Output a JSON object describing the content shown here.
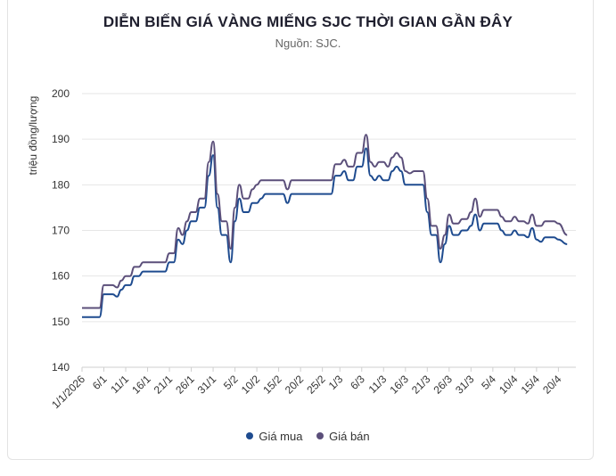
{
  "chart_data": {
    "type": "line",
    "title": "DIỄN BIẾN GIÁ VÀNG MIẾNG SJC THỜI GIAN GẦN ĐÂY",
    "subtitle": "Nguồn: SJC.",
    "ylabel": "triệu đồng/lượng",
    "ylim": [
      140,
      200
    ],
    "yticks": [
      140,
      150,
      160,
      170,
      180,
      190,
      200
    ],
    "xlim": [
      "2026-01-01",
      "2026-04-24"
    ],
    "xtick_labels": [
      "1/1/2026",
      "6/1",
      "11/1",
      "16/1",
      "21/1",
      "26/1",
      "31/1",
      "5/2",
      "10/2",
      "15/2",
      "20/2",
      "25/2",
      "1/3",
      "6/3",
      "11/3",
      "16/3",
      "21/3",
      "26/3",
      "31/3",
      "5/4",
      "10/4",
      "15/4",
      "20/4"
    ],
    "xtick_dates": [
      "2026-01-01",
      "2026-01-06",
      "2026-01-11",
      "2026-01-16",
      "2026-01-21",
      "2026-01-26",
      "2026-01-31",
      "2026-02-05",
      "2026-02-10",
      "2026-02-15",
      "2026-02-20",
      "2026-02-25",
      "2026-03-01",
      "2026-03-06",
      "2026-03-11",
      "2026-03-16",
      "2026-03-21",
      "2026-03-26",
      "2026-03-31",
      "2026-04-05",
      "2026-04-10",
      "2026-04-15",
      "2026-04-20"
    ],
    "grid": "horizontal",
    "legend_position": "bottom",
    "series": [
      {
        "name": "Giá mua",
        "color": "#1e4b8f",
        "points": [
          [
            "2026-01-01",
            151
          ],
          [
            "2026-01-05",
            151
          ],
          [
            "2026-01-06",
            156
          ],
          [
            "2026-01-08",
            156
          ],
          [
            "2026-01-09",
            155.5
          ],
          [
            "2026-01-10",
            157
          ],
          [
            "2026-01-11",
            158
          ],
          [
            "2026-01-12",
            158
          ],
          [
            "2026-01-13",
            160
          ],
          [
            "2026-01-14",
            160
          ],
          [
            "2026-01-15",
            161
          ],
          [
            "2026-01-20",
            161
          ],
          [
            "2026-01-21",
            163
          ],
          [
            "2026-01-22",
            163
          ],
          [
            "2026-01-23",
            168
          ],
          [
            "2026-01-24",
            167
          ],
          [
            "2026-01-25",
            170
          ],
          [
            "2026-01-26",
            172
          ],
          [
            "2026-01-27",
            172
          ],
          [
            "2026-01-28",
            175
          ],
          [
            "2026-01-29",
            175
          ],
          [
            "2026-01-30",
            182
          ],
          [
            "2026-01-31",
            186.5
          ],
          [
            "2026-02-01",
            175
          ],
          [
            "2026-02-02",
            169
          ],
          [
            "2026-02-03",
            169
          ],
          [
            "2026-02-04",
            163
          ],
          [
            "2026-02-05",
            172
          ],
          [
            "2026-02-06",
            177
          ],
          [
            "2026-02-07",
            174
          ],
          [
            "2026-02-08",
            174
          ],
          [
            "2026-02-09",
            176
          ],
          [
            "2026-02-10",
            176
          ],
          [
            "2026-02-11",
            177
          ],
          [
            "2026-02-12",
            178
          ],
          [
            "2026-02-16",
            178
          ],
          [
            "2026-02-17",
            176
          ],
          [
            "2026-02-18",
            178
          ],
          [
            "2026-02-27",
            178
          ],
          [
            "2026-02-28",
            182
          ],
          [
            "2026-03-01",
            182
          ],
          [
            "2026-03-02",
            183
          ],
          [
            "2026-03-03",
            181
          ],
          [
            "2026-03-04",
            181
          ],
          [
            "2026-03-05",
            184
          ],
          [
            "2026-03-06",
            184
          ],
          [
            "2026-03-07",
            188
          ],
          [
            "2026-03-08",
            182
          ],
          [
            "2026-03-09",
            181
          ],
          [
            "2026-03-10",
            182
          ],
          [
            "2026-03-11",
            181
          ],
          [
            "2026-03-12",
            181
          ],
          [
            "2026-03-13",
            183
          ],
          [
            "2026-03-14",
            184
          ],
          [
            "2026-03-15",
            183
          ],
          [
            "2026-03-16",
            180
          ],
          [
            "2026-03-20",
            180
          ],
          [
            "2026-03-21",
            174
          ],
          [
            "2026-03-22",
            169
          ],
          [
            "2026-03-23",
            169
          ],
          [
            "2026-03-24",
            163
          ],
          [
            "2026-03-25",
            167
          ],
          [
            "2026-03-26",
            171
          ],
          [
            "2026-03-27",
            169
          ],
          [
            "2026-03-28",
            169
          ],
          [
            "2026-03-29",
            170
          ],
          [
            "2026-03-30",
            170
          ],
          [
            "2026-03-31",
            171
          ],
          [
            "2026-04-01",
            173.5
          ],
          [
            "2026-04-02",
            170
          ],
          [
            "2026-04-03",
            171.5
          ],
          [
            "2026-04-06",
            171.5
          ],
          [
            "2026-04-07",
            170
          ],
          [
            "2026-04-08",
            169
          ],
          [
            "2026-04-09",
            169
          ],
          [
            "2026-04-10",
            170
          ],
          [
            "2026-04-11",
            169
          ],
          [
            "2026-04-12",
            169
          ],
          [
            "2026-04-13",
            168.5
          ],
          [
            "2026-04-14",
            170.5
          ],
          [
            "2026-04-15",
            168
          ],
          [
            "2026-04-16",
            167.5
          ],
          [
            "2026-04-17",
            168.5
          ],
          [
            "2026-04-19",
            168.5
          ],
          [
            "2026-04-20",
            168
          ],
          [
            "2026-04-22",
            167
          ]
        ]
      },
      {
        "name": "Giá bán",
        "color": "#5b4f7a",
        "points": [
          [
            "2026-01-01",
            153
          ],
          [
            "2026-01-05",
            153
          ],
          [
            "2026-01-06",
            158
          ],
          [
            "2026-01-08",
            158
          ],
          [
            "2026-01-09",
            157.5
          ],
          [
            "2026-01-10",
            159
          ],
          [
            "2026-01-11",
            160
          ],
          [
            "2026-01-12",
            160
          ],
          [
            "2026-01-13",
            162
          ],
          [
            "2026-01-14",
            162
          ],
          [
            "2026-01-15",
            163
          ],
          [
            "2026-01-20",
            163
          ],
          [
            "2026-01-21",
            165
          ],
          [
            "2026-01-22",
            165
          ],
          [
            "2026-01-23",
            170.5
          ],
          [
            "2026-01-24",
            169
          ],
          [
            "2026-01-25",
            172
          ],
          [
            "2026-01-26",
            174
          ],
          [
            "2026-01-27",
            174
          ],
          [
            "2026-01-28",
            177
          ],
          [
            "2026-01-29",
            177
          ],
          [
            "2026-01-30",
            185
          ],
          [
            "2026-01-31",
            189.5
          ],
          [
            "2026-02-01",
            178
          ],
          [
            "2026-02-02",
            172
          ],
          [
            "2026-02-03",
            172
          ],
          [
            "2026-02-04",
            166
          ],
          [
            "2026-02-05",
            175
          ],
          [
            "2026-02-06",
            180
          ],
          [
            "2026-02-07",
            177
          ],
          [
            "2026-02-08",
            177
          ],
          [
            "2026-02-09",
            179
          ],
          [
            "2026-02-10",
            180
          ],
          [
            "2026-02-11",
            181
          ],
          [
            "2026-02-12",
            181
          ],
          [
            "2026-02-16",
            181
          ],
          [
            "2026-02-17",
            179
          ],
          [
            "2026-02-18",
            181
          ],
          [
            "2026-02-27",
            181
          ],
          [
            "2026-02-28",
            184.5
          ],
          [
            "2026-03-01",
            184.5
          ],
          [
            "2026-03-02",
            185.5
          ],
          [
            "2026-03-03",
            184
          ],
          [
            "2026-03-04",
            184
          ],
          [
            "2026-03-05",
            187
          ],
          [
            "2026-03-06",
            187
          ],
          [
            "2026-03-07",
            191
          ],
          [
            "2026-03-08",
            185
          ],
          [
            "2026-03-09",
            184
          ],
          [
            "2026-03-10",
            185
          ],
          [
            "2026-03-11",
            185
          ],
          [
            "2026-03-12",
            184
          ],
          [
            "2026-03-13",
            186
          ],
          [
            "2026-03-14",
            187
          ],
          [
            "2026-03-15",
            186
          ],
          [
            "2026-03-16",
            183
          ],
          [
            "2026-03-17",
            182.5
          ],
          [
            "2026-03-18",
            183
          ],
          [
            "2026-03-20",
            183
          ],
          [
            "2026-03-21",
            177
          ],
          [
            "2026-03-22",
            171
          ],
          [
            "2026-03-23",
            171
          ],
          [
            "2026-03-24",
            166
          ],
          [
            "2026-03-25",
            169
          ],
          [
            "2026-03-26",
            173.5
          ],
          [
            "2026-03-27",
            171.5
          ],
          [
            "2026-03-28",
            171.5
          ],
          [
            "2026-03-29",
            172.5
          ],
          [
            "2026-03-30",
            172.5
          ],
          [
            "2026-03-31",
            174
          ],
          [
            "2026-04-01",
            177
          ],
          [
            "2026-04-02",
            173
          ],
          [
            "2026-04-03",
            174.5
          ],
          [
            "2026-04-06",
            174.5
          ],
          [
            "2026-04-07",
            173
          ],
          [
            "2026-04-08",
            172
          ],
          [
            "2026-04-09",
            172
          ],
          [
            "2026-04-10",
            173
          ],
          [
            "2026-04-11",
            172
          ],
          [
            "2026-04-12",
            172
          ],
          [
            "2026-04-13",
            171.5
          ],
          [
            "2026-04-14",
            173.5
          ],
          [
            "2026-04-15",
            171
          ],
          [
            "2026-04-16",
            171
          ],
          [
            "2026-04-17",
            172
          ],
          [
            "2026-04-19",
            172
          ],
          [
            "2026-04-20",
            171.5
          ],
          [
            "2026-04-22",
            169
          ]
        ]
      }
    ]
  }
}
